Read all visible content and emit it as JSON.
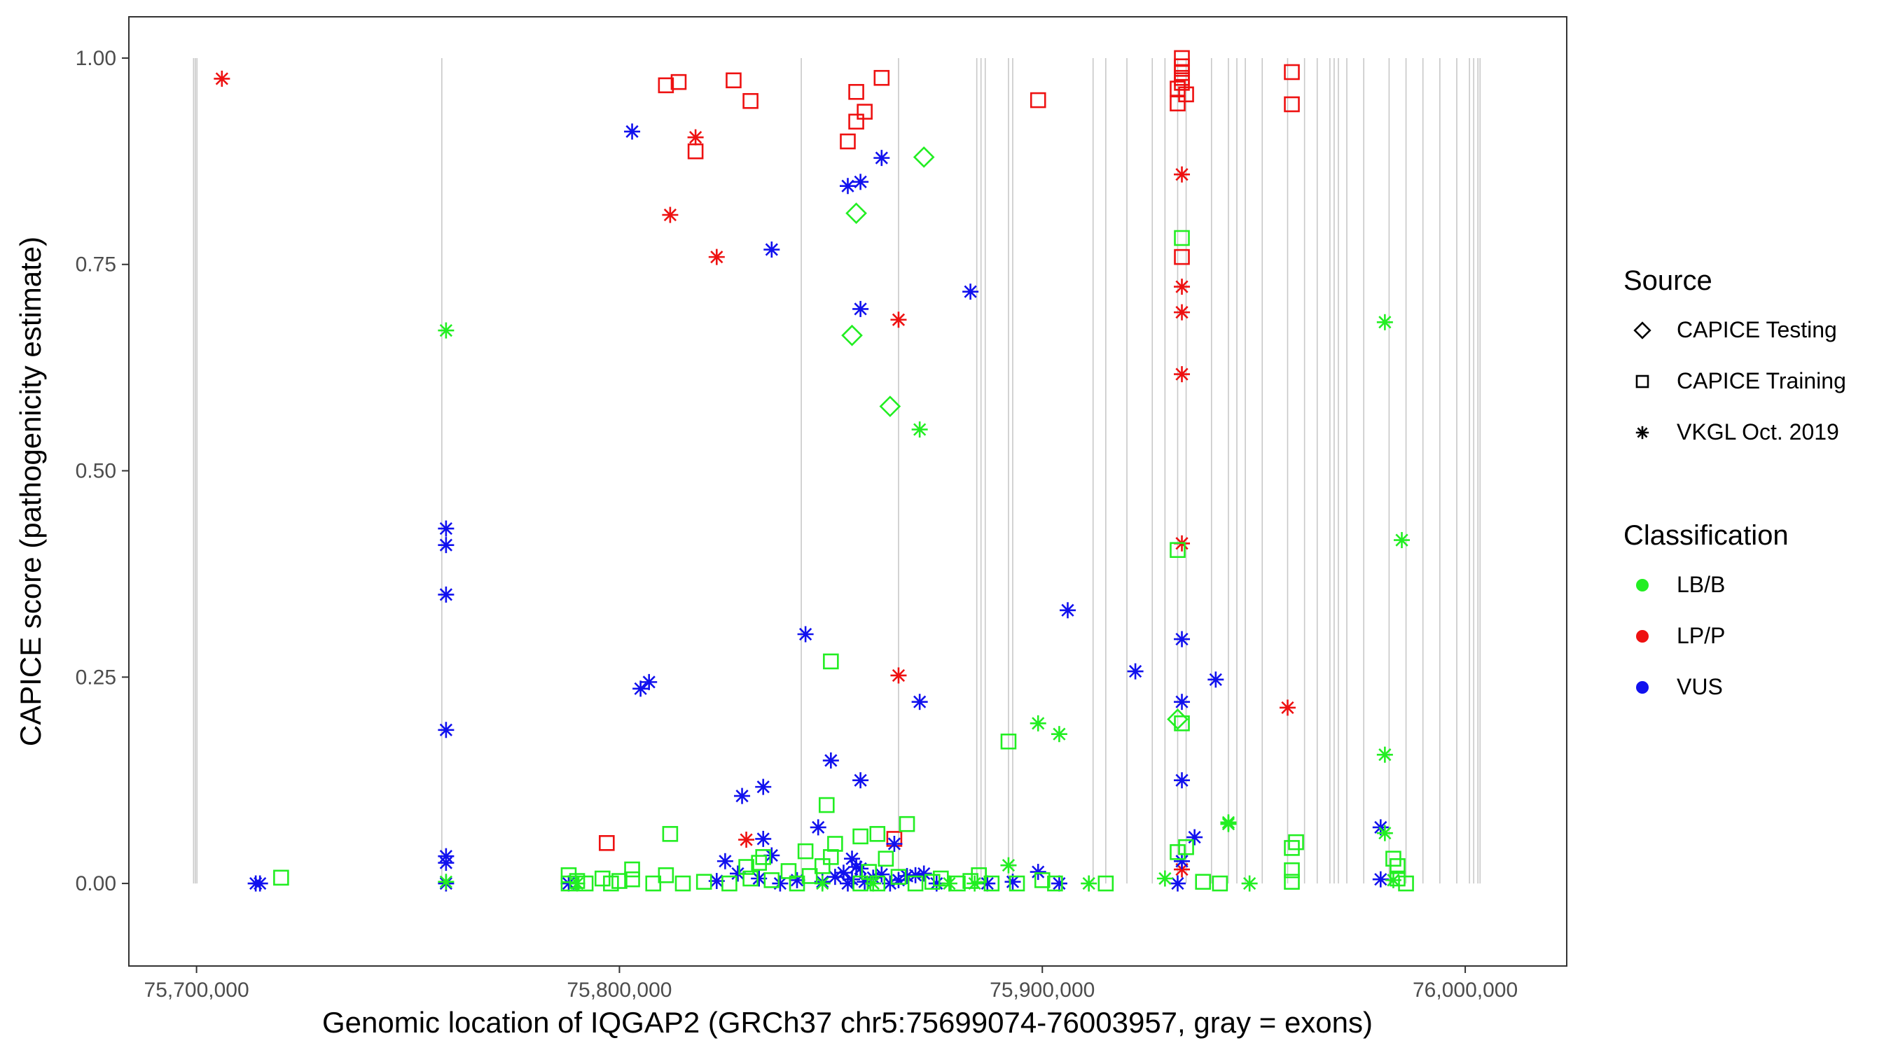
{
  "chart_data": {
    "type": "scatter",
    "title": "",
    "xlabel": "Genomic location of IQGAP2 (GRCh37 chr5:75699074-76003957, gray = exons)",
    "ylabel": "CAPICE score (pathogenicity estimate)",
    "xlim": [
      75684000,
      76024000
    ],
    "ylim": [
      -0.1,
      1.05
    ],
    "x_ticks": [
      75700000,
      75800000,
      75900000,
      76000000
    ],
    "x_tick_labels": [
      "75,700,000",
      "75,800,000",
      "75,900,000",
      "76,000,000"
    ],
    "y_ticks": [
      0,
      0.25,
      0.5,
      0.75,
      1.0
    ],
    "y_tick_labels": [
      "0.00",
      "0.25",
      "0.50",
      "0.75",
      "1.00"
    ],
    "exons": [
      75699300,
      75699700,
      75700100,
      75758000,
      75843000,
      75866000,
      75884500,
      75885500,
      75886500,
      75892000,
      75893000,
      75912000,
      75915000,
      75920000,
      75926000,
      75929000,
      75932000,
      75934000,
      75940000,
      75944000,
      75946000,
      75948000,
      75952000,
      75958000,
      75962000,
      75965000,
      75968000,
      75969000,
      75970000,
      75972000,
      75976000,
      75982000,
      75986000,
      75990000,
      75994000,
      75998000,
      76001000,
      76002000,
      76003000,
      76003500
    ],
    "legend": {
      "source_title": "Source",
      "source_items": [
        {
          "shape": "diamond",
          "label": "CAPICE Testing"
        },
        {
          "shape": "square",
          "label": "CAPICE Training"
        },
        {
          "shape": "asterisk",
          "label": "VKGL Oct. 2019"
        }
      ],
      "class_title": "Classification",
      "class_items": [
        {
          "color": "#22ee22",
          "label": "LB/B"
        },
        {
          "color": "#ee1111",
          "label": "LP/P"
        },
        {
          "color": "#1111ee",
          "label": "VUS"
        }
      ]
    },
    "colors": {
      "LB/B": "#22ee22",
      "LP/P": "#ee1111",
      "VUS": "#1111ee"
    },
    "series": [
      {
        "source": "CAPICE Training",
        "classification": "LP/P",
        "shape": "square",
        "points": [
          [
            75811000,
            0.967
          ],
          [
            75814000,
            0.971
          ],
          [
            75827000,
            0.973
          ],
          [
            75831000,
            0.948
          ],
          [
            75818000,
            0.887
          ],
          [
            75856000,
            0.959
          ],
          [
            75862000,
            0.976
          ],
          [
            75858000,
            0.935
          ],
          [
            75856000,
            0.923
          ],
          [
            75854000,
            0.899
          ],
          [
            75899000,
            0.949
          ],
          [
            75933000,
            1.0
          ],
          [
            75933000,
            0.99
          ],
          [
            75933000,
            0.982
          ],
          [
            75933000,
            0.976
          ],
          [
            75933000,
            0.97
          ],
          [
            75932000,
            0.963
          ],
          [
            75934000,
            0.956
          ],
          [
            75932000,
            0.945
          ],
          [
            75959000,
            0.983
          ],
          [
            75959000,
            0.944
          ],
          [
            75933000,
            0.759
          ],
          [
            75797000,
            0.049
          ],
          [
            75865000,
            0.054
          ]
        ]
      },
      {
        "source": "VKGL Oct. 2019",
        "classification": "LP/P",
        "shape": "asterisk",
        "points": [
          [
            75706000,
            0.975
          ],
          [
            75818000,
            0.904
          ],
          [
            75812000,
            0.81
          ],
          [
            75823000,
            0.759
          ],
          [
            75866000,
            0.683
          ],
          [
            75933000,
            0.859
          ],
          [
            75933000,
            0.723
          ],
          [
            75933000,
            0.692
          ],
          [
            75933000,
            0.617
          ],
          [
            75933000,
            0.412
          ],
          [
            75866000,
            0.252
          ],
          [
            75958000,
            0.213
          ],
          [
            75830000,
            0.053
          ],
          [
            75933000,
            0.017
          ]
        ]
      },
      {
        "source": "VKGL Oct. 2019",
        "classification": "VUS",
        "shape": "asterisk",
        "points": [
          [
            75803000,
            0.911
          ],
          [
            75862000,
            0.879
          ],
          [
            75857000,
            0.85
          ],
          [
            75854000,
            0.845
          ],
          [
            75836000,
            0.768
          ],
          [
            75883000,
            0.717
          ],
          [
            75857000,
            0.696
          ],
          [
            75759000,
            0.43
          ],
          [
            75759000,
            0.41
          ],
          [
            75759000,
            0.35
          ],
          [
            75759000,
            0.186
          ],
          [
            75759000,
            0.033
          ],
          [
            75759000,
            0.025
          ],
          [
            75759000,
            0.0
          ],
          [
            75714000,
            0.0
          ],
          [
            75715000,
            0.0
          ],
          [
            75906000,
            0.331
          ],
          [
            75844000,
            0.302
          ],
          [
            75933000,
            0.296
          ],
          [
            75922000,
            0.257
          ],
          [
            75941000,
            0.247
          ],
          [
            75807000,
            0.244
          ],
          [
            75805000,
            0.236
          ],
          [
            75871000,
            0.22
          ],
          [
            75933000,
            0.22
          ],
          [
            75850000,
            0.149
          ],
          [
            75857000,
            0.125
          ],
          [
            75933000,
            0.125
          ],
          [
            75834000,
            0.117
          ],
          [
            75829000,
            0.106
          ],
          [
            75847000,
            0.068
          ],
          [
            75980000,
            0.068
          ],
          [
            75936000,
            0.056
          ],
          [
            75834000,
            0.054
          ],
          [
            75836000,
            0.034
          ],
          [
            75865000,
            0.048
          ],
          [
            75825000,
            0.027
          ],
          [
            75933000,
            0.027
          ],
          [
            75855000,
            0.03
          ],
          [
            75857000,
            0.018
          ],
          [
            75870000,
            0.01
          ],
          [
            75899000,
            0.014
          ],
          [
            75788000,
            0.0
          ],
          [
            75823000,
            0.003
          ],
          [
            75828000,
            0.012
          ],
          [
            75833000,
            0.006
          ],
          [
            75838000,
            0.0
          ],
          [
            75842000,
            0.004
          ],
          [
            75848000,
            0.002
          ],
          [
            75851000,
            0.008
          ],
          [
            75853000,
            0.013
          ],
          [
            75854000,
            0.0
          ],
          [
            75855000,
            0.005
          ],
          [
            75856000,
            0.02
          ],
          [
            75858000,
            0.002
          ],
          [
            75860000,
            0.007
          ],
          [
            75862000,
            0.011
          ],
          [
            75864000,
            0.0
          ],
          [
            75866000,
            0.004
          ],
          [
            75868000,
            0.009
          ],
          [
            75872000,
            0.012
          ],
          [
            75875000,
            0.0
          ],
          [
            75887000,
            0.0
          ],
          [
            75893000,
            0.002
          ],
          [
            75904000,
            0.0
          ],
          [
            75932000,
            0.0
          ],
          [
            75980000,
            0.005
          ]
        ]
      },
      {
        "source": "VKGL Oct. 2019",
        "classification": "LB/B",
        "shape": "asterisk",
        "points": [
          [
            75759000,
            0.67
          ],
          [
            75981000,
            0.68
          ],
          [
            75871000,
            0.55
          ],
          [
            75985000,
            0.416
          ],
          [
            75899000,
            0.194
          ],
          [
            75904000,
            0.181
          ],
          [
            75981000,
            0.156
          ],
          [
            75944000,
            0.074
          ],
          [
            75944000,
            0.072
          ],
          [
            75981000,
            0.061
          ],
          [
            75892000,
            0.022
          ],
          [
            75759000,
            0.002
          ],
          [
            75911000,
            0.0
          ],
          [
            75929000,
            0.006
          ],
          [
            75949000,
            0.0
          ],
          [
            75983000,
            0.004
          ],
          [
            75878000,
            0.0
          ],
          [
            75884000,
            0.0
          ],
          [
            75848000,
            0.0
          ],
          [
            75860000,
            0.0
          ],
          [
            75790000,
            0.0
          ]
        ]
      },
      {
        "source": "CAPICE Testing",
        "classification": "LB/B",
        "shape": "diamond",
        "points": [
          [
            75872000,
            0.88
          ],
          [
            75856000,
            0.812
          ],
          [
            75855000,
            0.664
          ],
          [
            75864000,
            0.578
          ],
          [
            75932000,
            0.199
          ]
        ]
      },
      {
        "source": "CAPICE Training",
        "classification": "LB/B",
        "shape": "square",
        "points": [
          [
            75933000,
            0.782
          ],
          [
            75932000,
            0.404
          ],
          [
            75850000,
            0.269
          ],
          [
            75892000,
            0.172
          ],
          [
            75933000,
            0.194
          ],
          [
            75849000,
            0.095
          ],
          [
            75868000,
            0.072
          ],
          [
            75812000,
            0.06
          ],
          [
            75861000,
            0.06
          ],
          [
            75857000,
            0.057
          ],
          [
            75960000,
            0.05
          ],
          [
            75959000,
            0.043
          ],
          [
            75934000,
            0.044
          ],
          [
            75932000,
            0.038
          ],
          [
            75851000,
            0.048
          ],
          [
            75844000,
            0.039
          ],
          [
            75834000,
            0.032
          ],
          [
            75848000,
            0.021
          ],
          [
            75850000,
            0.032
          ],
          [
            75863000,
            0.03
          ],
          [
            75833000,
            0.025
          ],
          [
            75803000,
            0.017
          ],
          [
            75830000,
            0.02
          ],
          [
            75840000,
            0.015
          ],
          [
            75720000,
            0.007
          ],
          [
            75788000,
            0.01
          ],
          [
            75796000,
            0.006
          ],
          [
            75800000,
            0.003
          ],
          [
            75803000,
            0.005
          ],
          [
            75811000,
            0.01
          ],
          [
            75808000,
            0.0
          ],
          [
            75815000,
            0.0
          ],
          [
            75820000,
            0.002
          ],
          [
            75826000,
            0.0
          ],
          [
            75831000,
            0.006
          ],
          [
            75836000,
            0.004
          ],
          [
            75842000,
            0.0
          ],
          [
            75845000,
            0.009
          ],
          [
            75857000,
            0.0
          ],
          [
            75859000,
            0.014
          ],
          [
            75861000,
            0.0
          ],
          [
            75866000,
            0.008
          ],
          [
            75870000,
            0.0
          ],
          [
            75874000,
            0.002
          ],
          [
            75876000,
            0.006
          ],
          [
            75880000,
            0.0
          ],
          [
            75883000,
            0.003
          ],
          [
            75885000,
            0.01
          ],
          [
            75888000,
            0.0
          ],
          [
            75894000,
            0.0
          ],
          [
            75900000,
            0.004
          ],
          [
            75903000,
            0.0
          ],
          [
            75915000,
            0.0
          ],
          [
            75938000,
            0.002
          ],
          [
            75942000,
            0.0
          ],
          [
            75959000,
            0.016
          ],
          [
            75959000,
            0.002
          ],
          [
            75983000,
            0.03
          ],
          [
            75984000,
            0.021
          ],
          [
            75984000,
            0.006
          ],
          [
            75986000,
            0.0
          ],
          [
            75788000,
            0.0
          ],
          [
            75790000,
            0.003
          ],
          [
            75792000,
            0.0
          ],
          [
            75798000,
            0.0
          ]
        ]
      }
    ]
  }
}
